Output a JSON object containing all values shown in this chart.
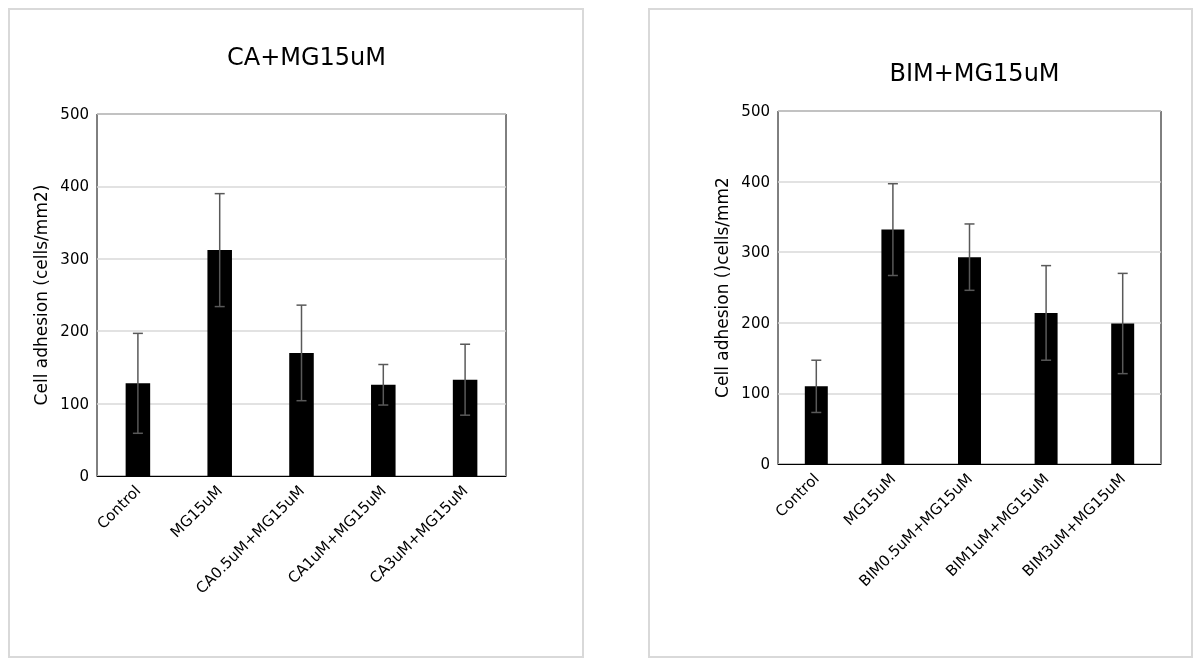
{
  "chart_data": [
    {
      "type": "bar",
      "title": "CA+MG15uM",
      "ylabel": "Cell adhesion (cells/mm2)",
      "categories": [
        "Control",
        "MG15uM",
        "CA0.5uM+MG15uM",
        "CA1uM+MG15uM",
        "CA3uM+MG15uM"
      ],
      "values": [
        128,
        312,
        170,
        126,
        133
      ],
      "errors": [
        69,
        78,
        66,
        28,
        49
      ],
      "color": "#000000",
      "ylim": [
        0,
        500
      ],
      "yticks": [
        0,
        100,
        200,
        300,
        400,
        500
      ],
      "grid": "y"
    },
    {
      "type": "bar",
      "title": "BIM+MG15uM",
      "ylabel": "Cell adhesion ()cells/mm2",
      "categories": [
        "Control",
        "MG15uM",
        "BIM0.5uM+MG15uM",
        "BIM1uM+MG15uM",
        "BIM3uM+MG15uM"
      ],
      "values": [
        110,
        332,
        293,
        214,
        199
      ],
      "errors": [
        37,
        65,
        47,
        67,
        71
      ],
      "color": "#000000",
      "ylim": [
        0,
        500
      ],
      "yticks": [
        0,
        100,
        200,
        300,
        400,
        500
      ],
      "grid": "y"
    }
  ]
}
